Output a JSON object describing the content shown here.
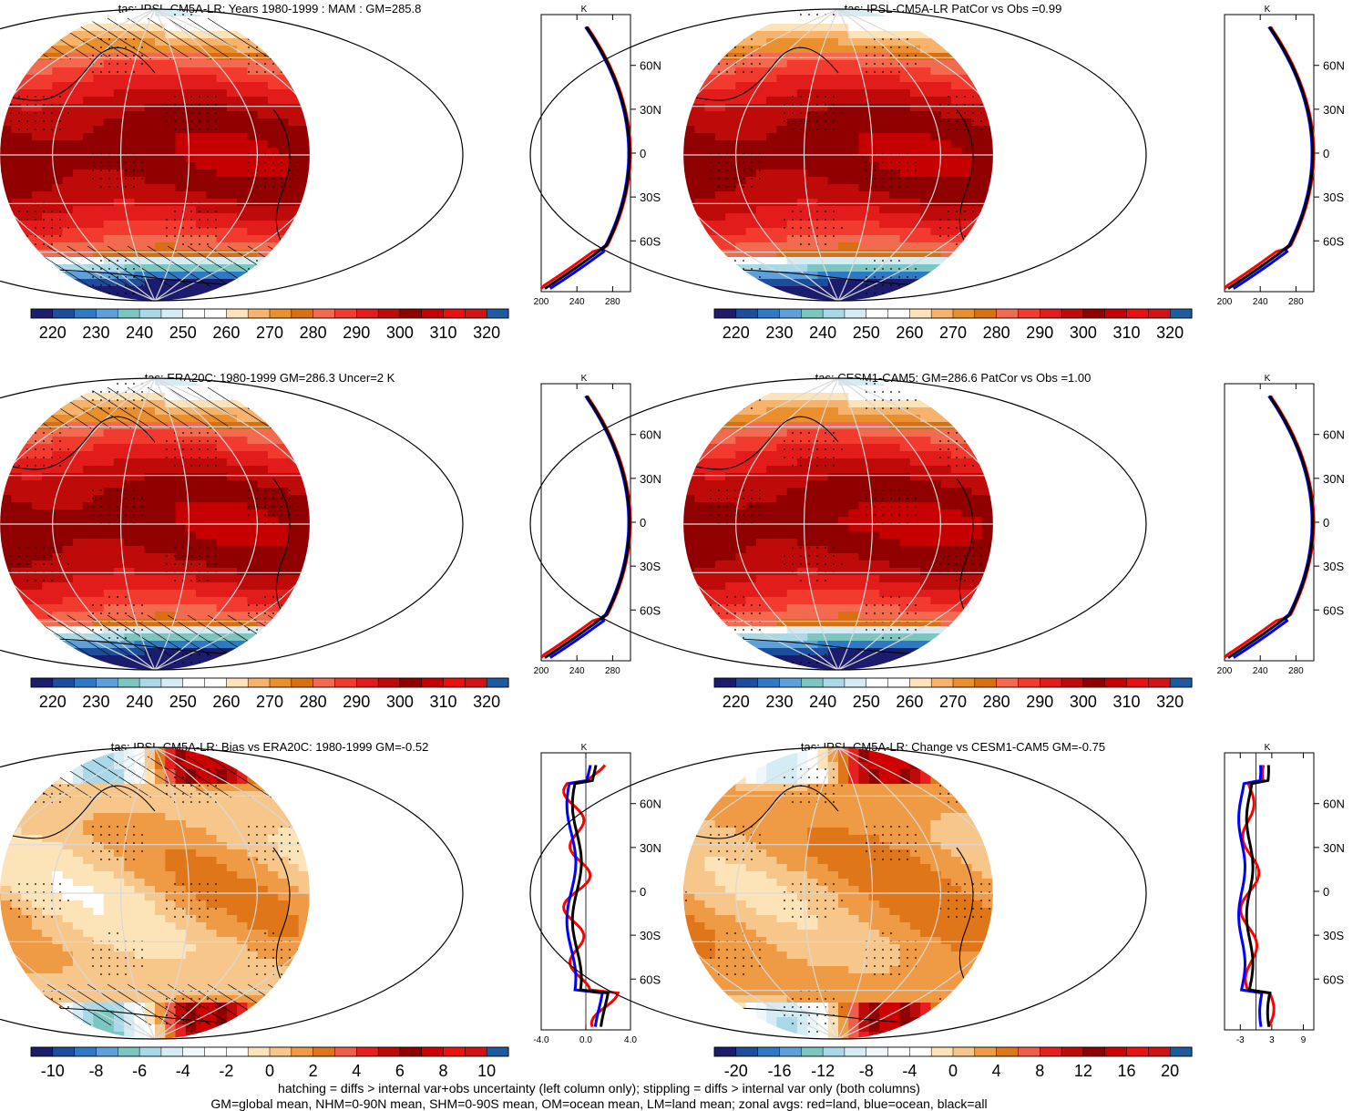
{
  "chart_data": [
    {
      "id": "p1",
      "type": "heatmap",
      "title": "tas: IPSL-CM5A-LR: Years 1980-1999 : MAM : GM=285.8",
      "colorbar": {
        "ticks": [
          "220",
          "230",
          "240",
          "250",
          "260",
          "270",
          "280",
          "290",
          "300",
          "310",
          "320"
        ],
        "palette": "temp"
      },
      "hatching": true,
      "zonal": {
        "xticks": [
          "200",
          "240",
          "280"
        ],
        "xlim": [
          200,
          300
        ],
        "unit": "K",
        "kind": "abs",
        "lat_ticks": [
          "60N",
          "30N",
          "0",
          "30S",
          "60S"
        ]
      }
    },
    {
      "id": "p2",
      "type": "heatmap",
      "title": "tas: IPSL-CM5A-LR PatCor vs Obs =0.99",
      "colorbar": {
        "ticks": [
          "220",
          "230",
          "240",
          "250",
          "260",
          "270",
          "280",
          "290",
          "300",
          "310",
          "320"
        ],
        "palette": "temp"
      },
      "hatching": false,
      "zonal": {
        "xticks": [
          "200",
          "240",
          "280"
        ],
        "xlim": [
          200,
          300
        ],
        "unit": "K",
        "kind": "abs",
        "lat_ticks": [
          "60N",
          "30N",
          "0",
          "30S",
          "60S"
        ]
      }
    },
    {
      "id": "p3",
      "type": "heatmap",
      "title": "tas: ERA20C: 1980-1999 GM=286.3 Uncer=2 K",
      "colorbar": {
        "ticks": [
          "220",
          "230",
          "240",
          "250",
          "260",
          "270",
          "280",
          "290",
          "300",
          "310",
          "320"
        ],
        "palette": "temp"
      },
      "hatching": true,
      "zonal": {
        "xticks": [
          "200",
          "240",
          "280"
        ],
        "xlim": [
          200,
          300
        ],
        "unit": "K",
        "kind": "abs",
        "lat_ticks": [
          "60N",
          "30N",
          "0",
          "30S",
          "60S"
        ]
      }
    },
    {
      "id": "p4",
      "type": "heatmap",
      "title": "tas: CESM1-CAM5: GM=286.6 PatCor vs Obs =1.00",
      "colorbar": {
        "ticks": [
          "220",
          "230",
          "240",
          "250",
          "260",
          "270",
          "280",
          "290",
          "300",
          "310",
          "320"
        ],
        "palette": "temp"
      },
      "hatching": false,
      "zonal": {
        "xticks": [
          "200",
          "240",
          "280"
        ],
        "xlim": [
          200,
          300
        ],
        "unit": "K",
        "kind": "abs",
        "lat_ticks": [
          "60N",
          "30N",
          "0",
          "30S",
          "60S"
        ]
      }
    },
    {
      "id": "p5",
      "type": "heatmap",
      "title": "tas: IPSL-CM5A-LR: Bias vs ERA20C: 1980-1999 GM=-0.52",
      "colorbar": {
        "ticks": [
          "-10",
          "-8",
          "-6",
          "-4",
          "-2",
          "0",
          "2",
          "4",
          "6",
          "8",
          "10"
        ],
        "palette": "diff"
      },
      "hatching": true,
      "zonal": {
        "xticks": [
          "-4.0",
          "0.0",
          "4.0"
        ],
        "xlim": [
          -4,
          4
        ],
        "unit": "K",
        "kind": "diff",
        "lat_ticks": [
          "60N",
          "30N",
          "0",
          "30S",
          "60S"
        ]
      }
    },
    {
      "id": "p6",
      "type": "heatmap",
      "title": "tas: IPSL-CM5A-LR: Change vs CESM1-CAM5 GM=-0.75",
      "colorbar": {
        "ticks": [
          "-20",
          "-16",
          "-12",
          "-8",
          "-4",
          "0",
          "4",
          "8",
          "12",
          "16",
          "20"
        ],
        "palette": "diff"
      },
      "hatching": false,
      "zonal": {
        "xticks": [
          "-3",
          "3",
          "9"
        ],
        "xlim": [
          -6,
          11
        ],
        "unit": "K",
        "kind": "diff2",
        "lat_ticks": [
          "60N",
          "30N",
          "0",
          "30S",
          "60S"
        ]
      }
    }
  ],
  "palettes": {
    "temp": [
      "#1c1c6e",
      "#1d4e9c",
      "#2f78c4",
      "#5da0db",
      "#7cc6c2",
      "#a9d9e8",
      "#d6ecf4",
      "#ffffff",
      "#ffffff",
      "#fde3b8",
      "#f7b36c",
      "#ea8f2d",
      "#d86f12",
      "#f26a4f",
      "#f23b2e",
      "#e21b1b",
      "#bf0a0a",
      "#900000",
      "#c60000",
      "#ea1010",
      "#d31313",
      "#1e5aa0"
    ],
    "diff": [
      "#1c1c6e",
      "#1d4e9c",
      "#2f78c4",
      "#5da0db",
      "#7cc6c2",
      "#a9d9e8",
      "#d6ecf4",
      "#eef7fb",
      "#ffffff",
      "#ffffff",
      "#fde3b8",
      "#f7c68b",
      "#ef9a45",
      "#e0761a",
      "#f25c4a",
      "#e81f1f",
      "#bf0a0a",
      "#900000",
      "#cf0000",
      "#ee1111",
      "#d31313",
      "#1e5aa0"
    ]
  },
  "zonal_colors": {
    "land": "#ff0000",
    "ocean": "#0000ff",
    "all": "#000000"
  },
  "footnote": {
    "line1": "hatching = diffs > internal var+obs uncertainty (left column only); stippling = diffs > internal var only (both columns)",
    "line2": "GM=global mean, NHM=0-90N mean, SHM=0-90S mean, OM=ocean mean, LM=land mean; zonal avgs: red=land, blue=ocean, black=all"
  }
}
